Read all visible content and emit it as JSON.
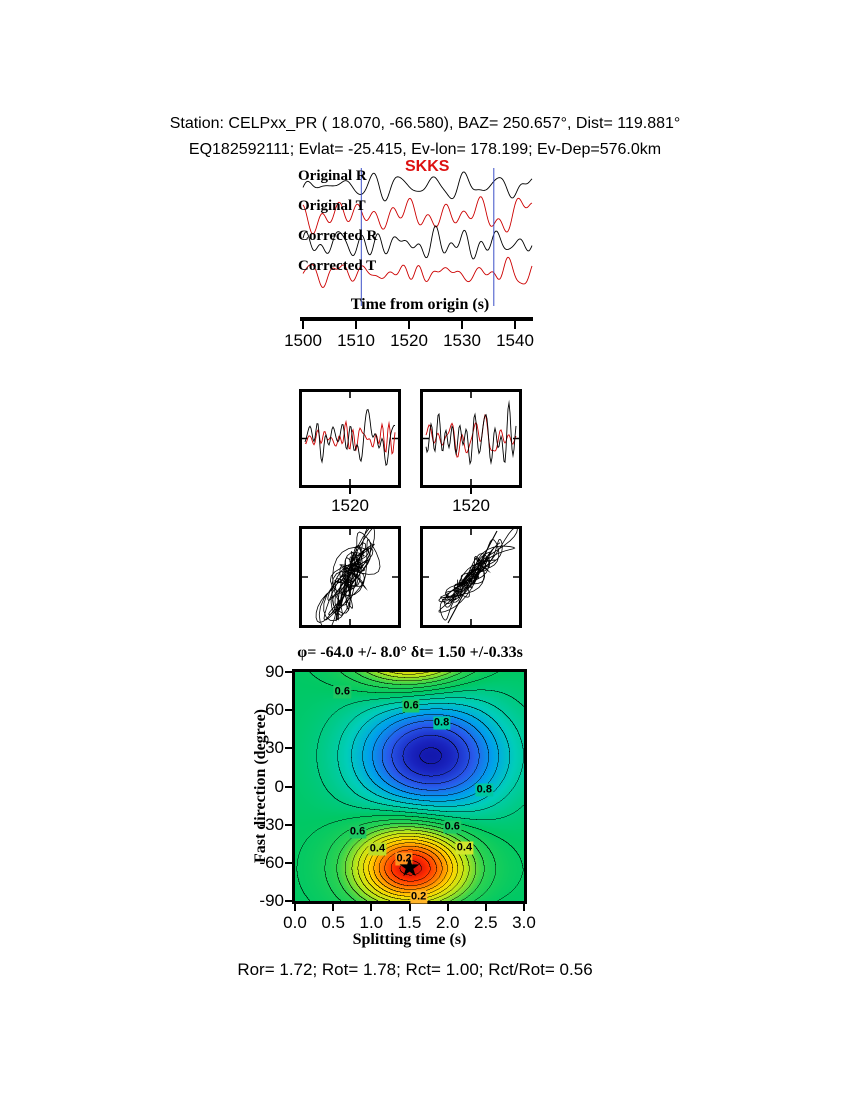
{
  "header": {
    "line1": "Station: CELPxx_PR (  18.070,  -66.580), BAZ=  250.657°, Dist=  119.881°",
    "line2": "EQ182592111; Evlat= -25.415, Ev-lon= 178.199; Ev-Dep=576.0km"
  },
  "seismogram": {
    "phase_label": "SKKS",
    "trace_labels": [
      "Original R",
      "Original T",
      "Corrected R",
      "Corrected T"
    ],
    "axis_label": "Time from origin (s)",
    "tick_labels": [
      "1500",
      "1510",
      "1520",
      "1530",
      "1540"
    ],
    "window": {
      "start_s": 1511,
      "end_s": 1536
    },
    "colors": {
      "radial": "#000000",
      "transverse": "#cc0000",
      "window": "#3c50c8",
      "phase": "#dd1111"
    }
  },
  "wave_panels": [
    {
      "tick_label": "1520"
    },
    {
      "tick_label": "1520"
    }
  ],
  "footer": {
    "result": "Ror= 1.72; Rot= 1.78; Rct= 1.00; Rct/Rot= 0.56"
  },
  "chart_data": {
    "type": "heatmap",
    "title": "φ= -64.0 +/- 8.0° δt= 1.50 +/-0.33s",
    "xlabel": "Splitting time (s)",
    "ylabel": "Fast direction (degree)",
    "xlim": [
      0.0,
      3.0
    ],
    "ylim": [
      -90,
      90
    ],
    "x_tick_labels": [
      "0.0",
      "0.5",
      "1.0",
      "1.5",
      "2.0",
      "2.5",
      "3.0"
    ],
    "y_tick_labels": [
      "90",
      "60",
      "30",
      "0",
      "-30",
      "-60",
      "-90"
    ],
    "best_fit": {
      "fast_direction_deg": -64.0,
      "fast_direction_err_deg": 8.0,
      "split_time_s": 1.5,
      "split_time_err_s": 0.33
    },
    "star": {
      "x": 1.5,
      "y": -64,
      "glyph": "★"
    },
    "contour_interval": 0.05,
    "field": {
      "description": "misfit surface: low (red) basin at star position, high (blue) basin near (1.8, 24); periodic in fast direction (180 deg)",
      "background": 0.66,
      "low": {
        "x": 1.52,
        "y": -64,
        "amp": 0.64,
        "sx": 0.52,
        "sy": 23
      },
      "high": {
        "x": 1.78,
        "y": 24,
        "amp": 0.45,
        "sx": 0.68,
        "sy": 31
      }
    },
    "colormap": [
      [
        0.0,
        190,
        0,
        10
      ],
      [
        0.08,
        255,
        45,
        0
      ],
      [
        0.18,
        255,
        125,
        0
      ],
      [
        0.3,
        255,
        215,
        0
      ],
      [
        0.42,
        190,
        230,
        25
      ],
      [
        0.55,
        45,
        210,
        80
      ],
      [
        0.66,
        0,
        200,
        100
      ],
      [
        0.78,
        0,
        205,
        185
      ],
      [
        0.88,
        0,
        160,
        235
      ],
      [
        0.98,
        40,
        90,
        235
      ],
      [
        1.08,
        25,
        35,
        190
      ],
      [
        1.15,
        10,
        10,
        150
      ]
    ],
    "contour_annotations": [
      {
        "text": "0.6",
        "x": 0.62,
        "y": 74,
        "bg": "#1ec864"
      },
      {
        "text": "0.6",
        "x": 1.52,
        "y": 63,
        "bg": "#1ec864"
      },
      {
        "text": "0.8",
        "x": 1.92,
        "y": 50,
        "bg": "#00c8a0"
      },
      {
        "text": "0.8",
        "x": 2.48,
        "y": -3,
        "bg": "#00c8a0"
      },
      {
        "text": "0.6",
        "x": 0.82,
        "y": -36,
        "bg": "#1ec864"
      },
      {
        "text": "0.6",
        "x": 2.06,
        "y": -32,
        "bg": "#1ec864"
      },
      {
        "text": "0.4",
        "x": 1.08,
        "y": -49,
        "bg": "#bedc28"
      },
      {
        "text": "0.4",
        "x": 2.22,
        "y": -48,
        "bg": "#d2e62d"
      },
      {
        "text": "0.2",
        "x": 1.43,
        "y": -57,
        "bg": "#ff911e"
      },
      {
        "text": "0.2",
        "x": 1.62,
        "y": -87,
        "bg": "#ffb428"
      }
    ]
  }
}
